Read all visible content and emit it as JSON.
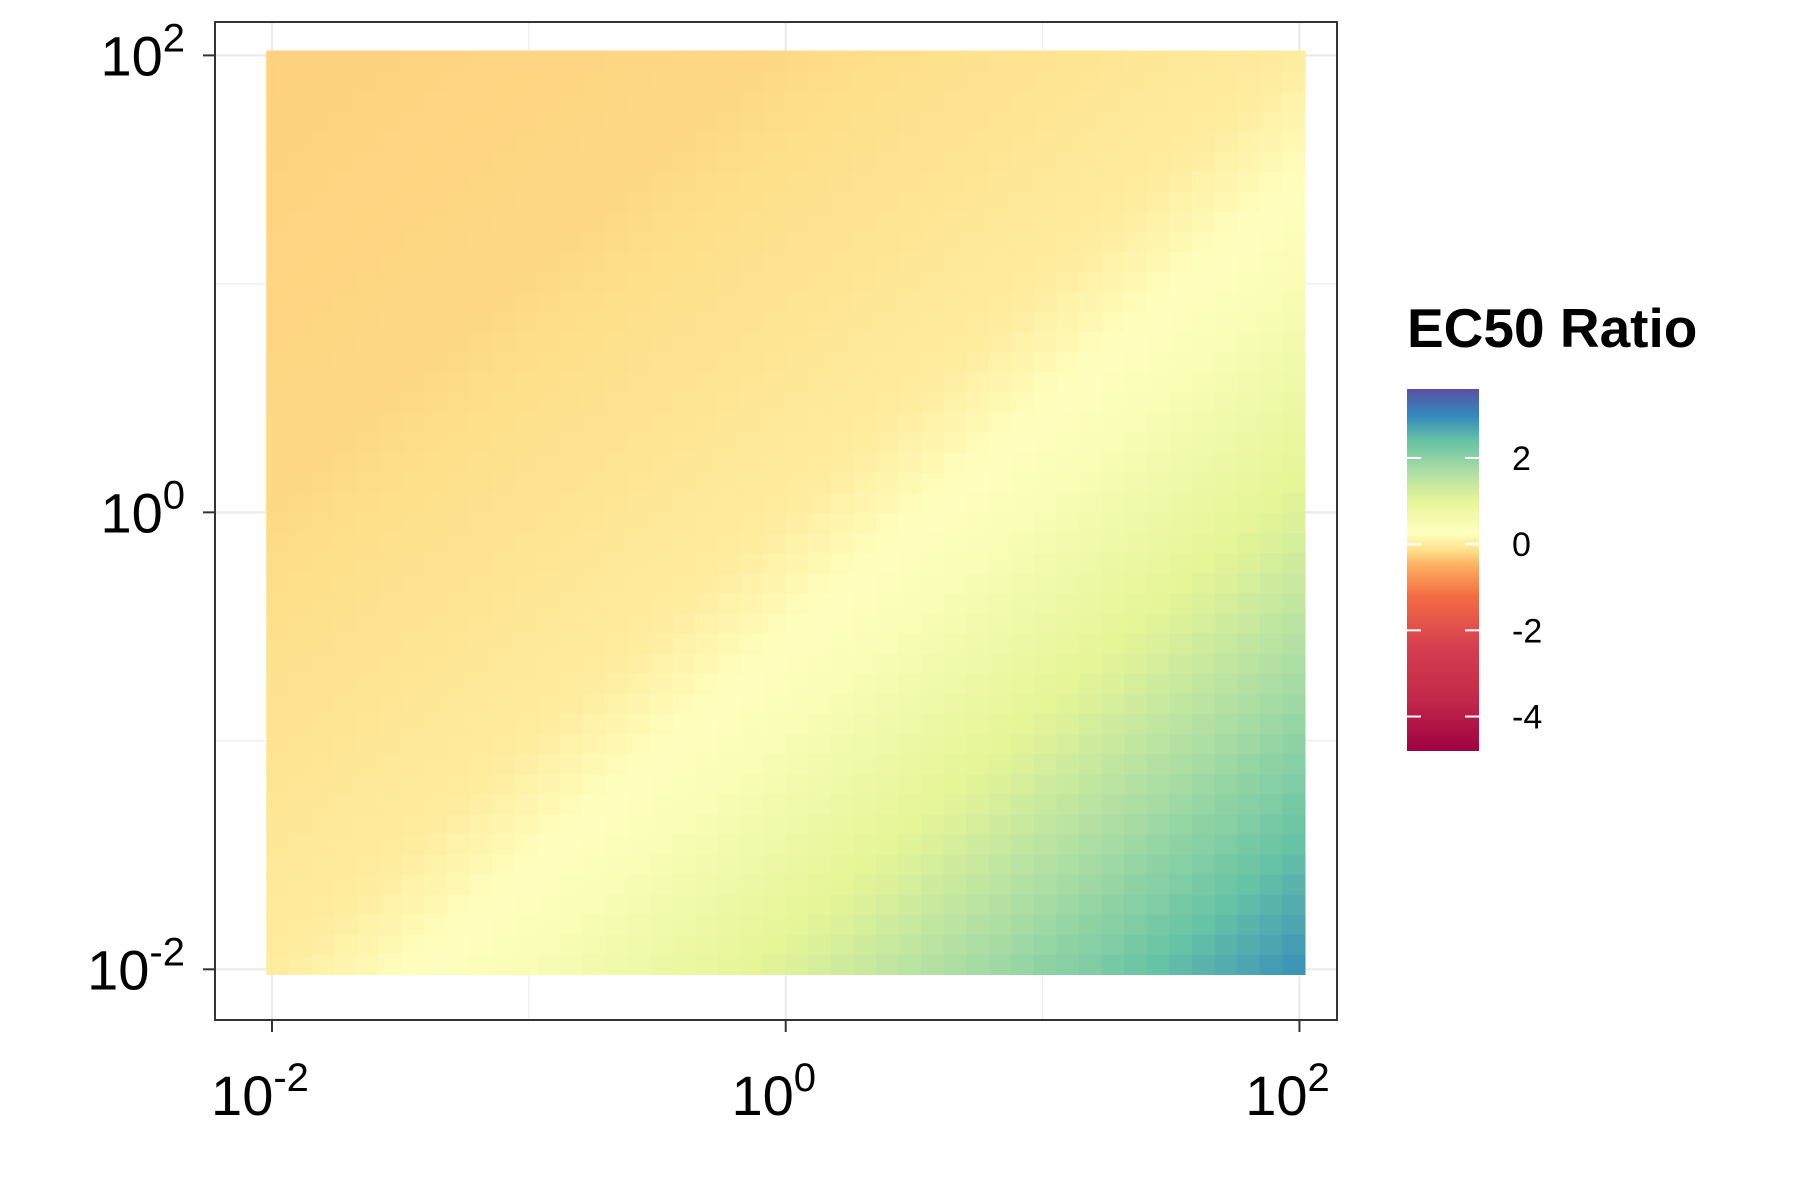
{
  "chart_data": {
    "type": "heatmap",
    "title": "",
    "xlabel": "",
    "ylabel": "",
    "x_scale": "log10",
    "y_scale": "log10",
    "xlim": [
      0.006,
      140
    ],
    "ylim": [
      0.006,
      140
    ],
    "grid": true,
    "data_extent": {
      "x": [
        0.0095,
        105
      ],
      "y": [
        0.0095,
        105
      ]
    },
    "x_ticks": [
      {
        "value": 0.01,
        "base": "10",
        "exp": "-2"
      },
      {
        "value": 1,
        "base": "10",
        "exp": "0"
      },
      {
        "value": 100,
        "base": "10",
        "exp": "2"
      }
    ],
    "y_ticks": [
      {
        "value": 0.01,
        "base": "10",
        "exp": "-2"
      },
      {
        "value": 1,
        "base": "10",
        "exp": "0"
      },
      {
        "value": 100,
        "base": "10",
        "exp": "2"
      }
    ],
    "grid_resolution": 46,
    "surface": {
      "description_of_values": "EC50 Ratio",
      "model": "value depends mainly on log10(x) - log10(y)",
      "samples_diff_vs_value": [
        [
          -4,
          -0.25
        ],
        [
          -2,
          -0.2
        ],
        [
          0,
          0.0
        ],
        [
          1,
          0.45
        ],
        [
          2,
          1.1
        ],
        [
          3,
          2.0
        ],
        [
          4,
          2.9
        ]
      ]
    },
    "legend": {
      "title": "EC50 Ratio",
      "placement": "right",
      "limits": [
        -4.8,
        3.6
      ],
      "ticks": [
        "2",
        "0",
        "-2",
        "-4"
      ],
      "tick_values": [
        2,
        0,
        -2,
        -4
      ],
      "palette": "Spectral",
      "color_stops": [
        {
          "value": -4.8,
          "color": "#9E0142"
        },
        {
          "value": -3.6,
          "color": "#C2294A"
        },
        {
          "value": -2.4,
          "color": "#D53E4F"
        },
        {
          "value": -1.2,
          "color": "#F46D43"
        },
        {
          "value": -0.5,
          "color": "#FDAE61"
        },
        {
          "value": -0.15,
          "color": "#FEE08B"
        },
        {
          "value": 0.25,
          "color": "#FFFFBF"
        },
        {
          "value": 1.0,
          "color": "#E6F598"
        },
        {
          "value": 1.7,
          "color": "#ABDDA4"
        },
        {
          "value": 2.4,
          "color": "#66C2A5"
        },
        {
          "value": 3.0,
          "color": "#3288BD"
        },
        {
          "value": 3.6,
          "color": "#5E4FA2"
        }
      ]
    }
  }
}
